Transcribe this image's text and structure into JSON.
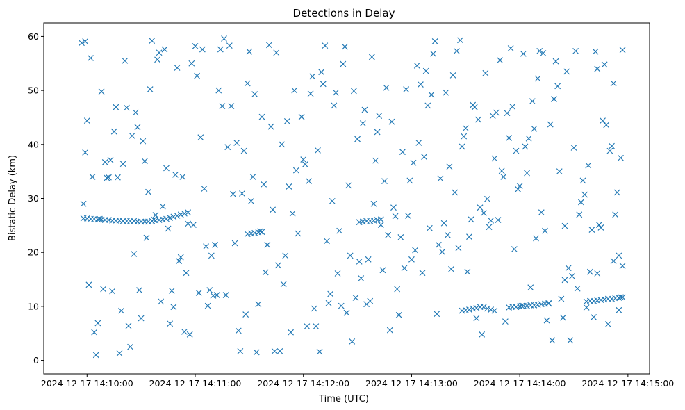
{
  "chart_data": {
    "type": "scatter",
    "title": "Detections in Delay",
    "xlabel": "Time (UTC)",
    "ylabel": "Bistatic Delay (km)",
    "x_axis_type": "datetime",
    "xlim": [
      "2024-12-17 14:09:36",
      "2024-12-17 14:15:12"
    ],
    "ylim": [
      -2.5,
      62.5
    ],
    "x_ticks": [
      "2024-12-17 14:10:00",
      "2024-12-17 14:11:00",
      "2024-12-17 14:12:00",
      "2024-12-17 14:13:00",
      "2024-12-17 14:14:00",
      "2024-12-17 14:15:00"
    ],
    "y_ticks": [
      "0",
      "10",
      "20",
      "30",
      "40",
      "50",
      "60"
    ],
    "grid": false,
    "legend": "none",
    "marker": "x",
    "color": "#1f77b4",
    "series": [
      {
        "x": [
          "14:09:57",
          "14:09:59",
          "14:10:01",
          "14:10:04",
          "14:10:08",
          "14:10:12",
          "14:10:15",
          "14:10:18",
          "14:10:20",
          "14:10:24",
          "14:10:27",
          "14:10:30",
          "14:10:33",
          "14:10:36",
          "14:10:41",
          "14:10:44",
          "14:10:47",
          "14:10:50",
          "14:10:53",
          "14:10:57",
          "14:11:00",
          "14:11:04",
          "14:11:07",
          "14:11:10",
          "14:11:13",
          "14:11:15",
          "14:11:19",
          "14:11:22",
          "14:11:25",
          "14:11:28",
          "14:11:31",
          "14:11:34",
          "14:11:38",
          "14:11:41",
          "14:11:45",
          "14:11:48",
          "14:11:51",
          "14:11:54",
          "14:11:57",
          "14:12:01",
          "14:12:04",
          "14:12:07",
          "14:12:11",
          "14:12:14",
          "14:12:17",
          "14:12:20",
          "14:12:23",
          "14:12:27",
          "14:12:30",
          "14:12:33",
          "14:12:36",
          "14:12:39",
          "14:12:42",
          "14:12:45",
          "14:12:49",
          "14:12:52",
          "14:12:55",
          "14:12:58",
          "14:13:02",
          "14:13:05",
          "14:13:08",
          "14:13:11",
          "14:13:14",
          "14:13:17",
          "14:13:21",
          "14:13:24",
          "14:13:27",
          "14:13:30",
          "14:13:33",
          "14:13:37",
          "14:13:40",
          "14:13:43",
          "14:13:46",
          "14:13:49",
          "14:13:52",
          "14:13:56",
          "14:13:59",
          "14:14:02",
          "14:14:05",
          "14:14:09",
          "14:14:12",
          "14:14:15",
          "14:14:18",
          "14:14:21",
          "14:14:25",
          "14:14:28",
          "14:14:31",
          "14:14:34",
          "14:14:37",
          "14:14:40",
          "14:14:43",
          "14:14:46",
          "14:14:49",
          "14:14:52",
          "14:14:55",
          "14:14:57",
          "14:09:58",
          "14:10:02",
          "14:10:06",
          "14:10:09",
          "14:10:13",
          "14:10:17",
          "14:10:21",
          "14:10:25",
          "14:10:29",
          "14:10:32",
          "14:10:35",
          "14:10:39",
          "14:10:43",
          "14:10:46",
          "14:10:49",
          "14:10:52",
          "14:10:56",
          "14:10:59",
          "14:11:03",
          "14:11:06",
          "14:11:09",
          "14:11:12",
          "14:11:16",
          "14:11:20",
          "14:11:23",
          "14:11:27",
          "14:11:30",
          "14:11:33",
          "14:11:36",
          "14:11:40",
          "14:11:43",
          "14:11:46",
          "14:11:50",
          "14:11:53",
          "14:11:56",
          "14:12:00",
          "14:12:03",
          "14:12:06",
          "14:12:10",
          "14:12:13",
          "14:12:16",
          "14:12:19",
          "14:12:22",
          "14:12:26",
          "14:12:29",
          "14:12:32",
          "14:12:35",
          "14:12:38",
          "14:12:41",
          "14:12:44",
          "14:12:48",
          "14:12:51",
          "14:12:54",
          "14:12:57",
          "14:13:00",
          "14:13:04",
          "14:13:07",
          "14:13:10",
          "14:13:13",
          "14:13:16",
          "14:13:20",
          "14:13:23",
          "14:13:26",
          "14:13:29",
          "14:13:32",
          "14:13:35",
          "14:13:39",
          "14:13:42",
          "14:13:45",
          "14:13:48",
          "14:13:51",
          "14:13:54",
          "14:13:58",
          "14:14:01",
          "14:14:04",
          "14:14:07",
          "14:14:10",
          "14:14:14",
          "14:14:17",
          "14:14:20",
          "14:14:23",
          "14:14:26",
          "14:14:30",
          "14:14:33",
          "14:14:36",
          "14:14:39",
          "14:14:42",
          "14:14:45",
          "14:14:48",
          "14:14:51",
          "14:14:54",
          "14:14:56",
          "14:09:59",
          "14:10:03",
          "14:10:07",
          "14:10:10",
          "14:10:14",
          "14:10:19",
          "14:10:22",
          "14:10:26",
          "14:10:31",
          "14:10:34",
          "14:10:37",
          "14:10:42",
          "14:10:45",
          "14:10:48",
          "14:10:51",
          "14:10:55",
          "14:10:58",
          "14:11:02",
          "14:11:05",
          "14:11:08",
          "14:11:11",
          "14:11:14",
          "14:11:18",
          "14:11:21",
          "14:11:24",
          "14:11:29",
          "14:11:32",
          "14:11:35",
          "14:11:39",
          "14:11:42",
          "14:11:47",
          "14:11:49",
          "14:11:52",
          "14:11:55",
          "14:11:59",
          "14:12:02",
          "14:12:05",
          "14:12:08",
          "14:12:12",
          "14:12:15",
          "14:12:18",
          "14:12:21",
          "14:12:25",
          "14:12:28",
          "14:12:31",
          "14:12:34",
          "14:12:37",
          "14:12:40",
          "14:12:43",
          "14:12:47",
          "14:12:50",
          "14:12:53",
          "14:12:56",
          "14:12:59",
          "14:13:03",
          "14:13:06",
          "14:13:09",
          "14:13:12",
          "14:13:15",
          "14:13:19",
          "14:13:22",
          "14:13:25",
          "14:13:28",
          "14:13:31",
          "14:13:34",
          "14:13:38",
          "14:13:41",
          "14:13:44",
          "14:13:47",
          "14:13:50",
          "14:13:53",
          "14:13:57",
          "14:14:00",
          "14:14:03",
          "14:14:06",
          "14:14:08",
          "14:14:11",
          "14:14:13",
          "14:14:16",
          "14:14:19",
          "14:14:22",
          "14:14:24",
          "14:14:27",
          "14:14:29",
          "14:14:32",
          "14:14:35",
          "14:14:38",
          "14:14:41",
          "14:14:44",
          "14:14:47",
          "14:14:50",
          "14:14:53",
          "14:14:55",
          "14:14:57",
          "14:10:00",
          "14:10:05",
          "14:10:11",
          "14:10:16",
          "14:10:23",
          "14:10:28",
          "14:10:38",
          "14:10:40",
          "14:10:54",
          "14:11:01",
          "14:11:17",
          "14:11:26",
          "14:11:37",
          "14:11:44",
          "14:12:09",
          "14:12:24",
          "14:12:46",
          "14:13:01",
          "14:13:18",
          "14:13:36",
          "14:13:55",
          "14:14:25",
          "14:14:43",
          "14:14:52",
          "14:09:58",
          "14:10:00",
          "14:10:02",
          "14:10:04",
          "14:10:06",
          "14:10:08",
          "14:10:10",
          "14:10:12",
          "14:10:14",
          "14:10:16",
          "14:10:18",
          "14:10:20",
          "14:10:22",
          "14:10:24",
          "14:10:26",
          "14:10:28",
          "14:10:30",
          "14:10:32",
          "14:10:34",
          "14:10:36",
          "14:10:38",
          "14:10:40",
          "14:10:42",
          "14:10:44",
          "14:10:46",
          "14:10:48",
          "14:10:50",
          "14:10:52",
          "14:10:54",
          "14:10:56",
          "14:13:28",
          "14:13:30",
          "14:13:32",
          "14:13:34",
          "14:13:36",
          "14:13:38",
          "14:13:40",
          "14:13:42",
          "14:13:44",
          "14:13:46",
          "14:13:54",
          "14:13:56",
          "14:13:58",
          "14:14:00",
          "14:14:02",
          "14:14:04",
          "14:14:06",
          "14:14:08",
          "14:14:10",
          "14:14:12",
          "14:14:14",
          "14:14:16",
          "14:14:37",
          "14:14:39",
          "14:14:41",
          "14:14:43",
          "14:14:45",
          "14:14:47",
          "14:14:49",
          "14:14:51",
          "14:14:53",
          "14:14:55",
          "14:14:56",
          "14:14:57",
          "14:12:31",
          "14:12:33",
          "14:12:35",
          "14:12:37",
          "14:12:39",
          "14:12:41",
          "14:12:43",
          "14:11:29",
          "14:11:31",
          "14:11:33",
          "14:11:35",
          "14:11:37"
        ],
        "y": [
          58.8,
          38.5,
          14.0,
          5.2,
          49.8,
          33.9,
          42.4,
          1.3,
          36.4,
          2.5,
          45.9,
          7.8,
          22.7,
          59.2,
          10.9,
          35.6,
          12.9,
          54.2,
          34.0,
          4.8,
          58.2,
          57.6,
          10.1,
          12.0,
          50.0,
          47.1,
          58.3,
          21.7,
          1.7,
          8.5,
          29.5,
          1.5,
          32.6,
          58.4,
          57.0,
          40.0,
          44.3,
          27.2,
          23.5,
          36.3,
          49.4,
          6.3,
          51.2,
          10.6,
          47.2,
          24.0,
          58.1,
          3.5,
          41.0,
          43.9,
          18.7,
          29.0,
          45.3,
          33.2,
          44.2,
          13.2,
          38.6,
          26.8,
          20.4,
          51.1,
          53.6,
          49.2,
          8.6,
          20.1,
          35.9,
          31.1,
          59.3,
          43.0,
          26.1,
          44.6,
          27.3,
          24.7,
          37.4,
          55.6,
          7.2,
          47.0,
          31.7,
          56.8,
          41.1,
          22.6,
          27.4,
          7.4,
          3.7,
          50.8,
          14.9,
          3.7,
          57.3,
          29.3,
          9.8,
          24.2,
          54.0,
          44.4,
          6.7,
          18.4,
          19.4,
          57.5,
          29.0,
          56.0,
          6.9,
          13.2,
          37.1,
          33.9,
          55.5,
          41.6,
          13.0,
          36.9,
          50.2,
          55.7,
          57.6,
          6.8,
          34.4,
          19.1,
          25.3,
          25.1,
          41.3,
          21.1,
          19.4,
          12.1,
          59.6,
          47.1,
          40.3,
          38.8,
          57.2,
          49.3,
          23.9,
          21.4,
          27.9,
          17.6,
          19.4,
          5.2,
          35.2,
          37.2,
          33.2,
          9.6,
          53.4,
          22.1,
          29.5,
          16.1,
          54.9,
          19.4,
          11.6,
          15.2,
          10.4,
          56.2,
          42.3,
          16.7,
          5.6,
          26.7,
          22.8,
          50.2,
          18.7,
          40.3,
          37.7,
          24.5,
          59.1,
          33.7,
          23.2,
          52.8,
          20.8,
          41.5,
          22.9,
          46.9,
          4.8,
          29.9,
          45.3,
          26.0,
          34.0,
          41.2,
          38.8,
          10.1,
          34.7,
          48.0,
          52.2,
          24.0,
          43.7,
          55.4,
          11.4,
          53.5,
          39.4,
          27.0,
          30.7,
          16.4,
          57.2,
          24.6,
          43.6,
          39.7,
          31.1,
          37.5,
          59.1,
          34.0,
          26.2,
          36.7,
          12.8,
          9.2,
          46.8,
          19.7,
          40.6,
          31.2,
          26.1,
          28.5,
          24.4,
          9.9,
          18.4,
          16.2,
          55.0,
          12.5,
          31.8,
          13.0,
          21.4,
          57.6,
          39.5,
          30.8,
          5.5,
          51.3,
          34.0,
          10.4,
          16.3,
          43.3,
          1.7,
          14.1,
          32.2,
          50.0,
          45.1,
          6.3,
          52.6,
          38.9,
          58.3,
          12.3,
          49.6,
          10.1,
          32.4,
          49.9,
          18.3,
          46.4,
          11.0,
          37.0,
          25.1,
          23.2,
          28.3,
          8.4,
          17.1,
          33.3,
          54.6,
          16.2,
          47.2,
          56.8,
          21.4,
          49.6,
          16.9,
          57.3,
          39.6,
          16.4,
          47.3,
          28.3,
          53.2,
          25.9,
          45.9,
          35.1,
          45.8,
          20.6,
          32.3,
          39.6,
          13.5,
          42.9,
          57.3,
          56.9,
          10.6,
          48.4,
          35.0,
          7.9,
          17.1,
          15.6,
          13.3,
          33.3,
          36.1,
          8.0,
          25.1,
          54.8,
          38.8,
          27.0,
          9.3,
          17.5,
          44.4,
          1.0,
          33.8,
          46.9,
          6.4,
          43.2,
          26.9,
          57.0,
          5.3,
          52.7,
          12.1,
          30.9,
          45.1,
          1.7,
          1.6,
          8.8,
          50.5,
          36.6,
          25.4,
          7.8,
          57.8,
          24.9,
          16.1,
          51.3,
          26.3,
          26.3,
          26.2,
          26.2,
          26.1,
          26.1,
          26.0,
          26.0,
          25.9,
          25.9,
          25.9,
          25.8,
          25.8,
          25.8,
          25.8,
          25.7,
          25.7,
          25.7,
          25.7,
          25.8,
          25.9,
          26.0,
          26.1,
          26.2,
          26.4,
          26.6,
          26.8,
          27.0,
          27.2,
          27.4,
          9.2,
          9.3,
          9.4,
          9.6,
          9.7,
          9.9,
          9.9,
          9.6,
          9.4,
          9.2,
          9.8,
          9.9,
          9.9,
          10.0,
          10.1,
          10.1,
          10.2,
          10.2,
          10.3,
          10.4,
          10.5,
          10.5,
          10.9,
          11.0,
          11.0,
          11.1,
          11.2,
          11.3,
          11.4,
          11.4,
          11.5,
          11.6,
          11.7,
          11.7,
          25.6,
          25.7,
          25.8,
          25.8,
          25.9,
          26.0,
          26.1,
          23.4,
          23.5,
          23.6,
          23.7,
          23.8
        ]
      }
    ]
  }
}
